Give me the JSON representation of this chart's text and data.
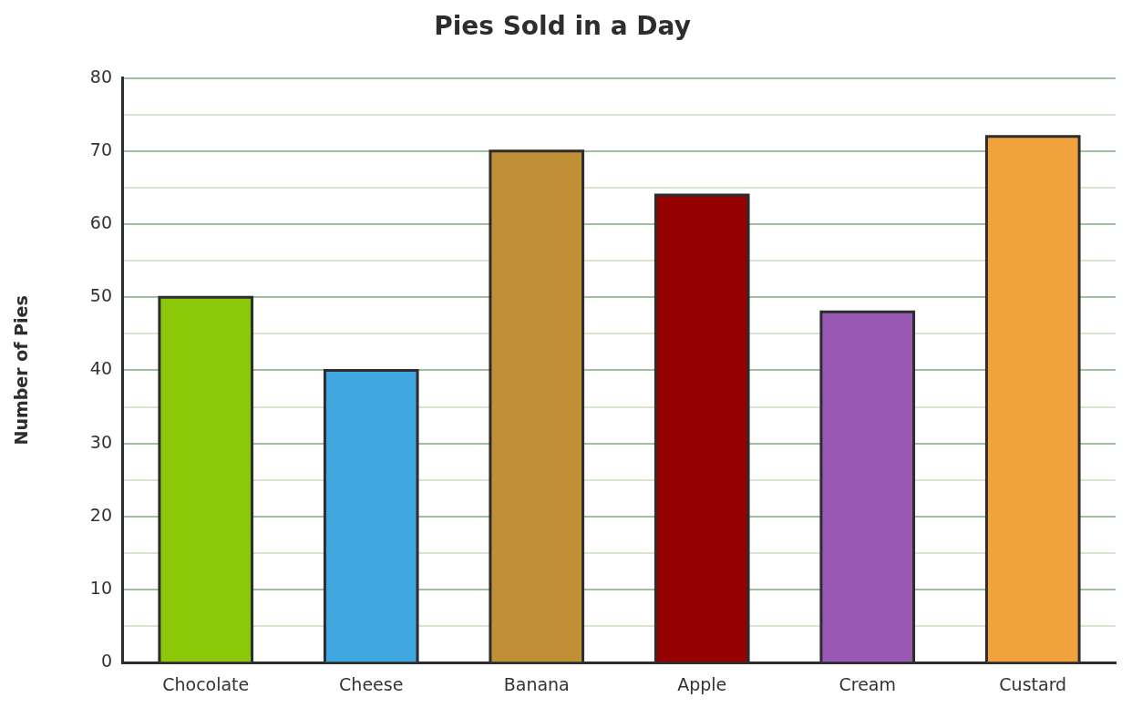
{
  "chart_data": {
    "type": "bar",
    "title": "Pies Sold in a Day",
    "ylabel": "Number of Pies",
    "categories": [
      "Chocolate",
      "Cheese",
      "Banana",
      "Apple",
      "Cream",
      "Custard"
    ],
    "values": [
      50,
      40,
      70,
      64,
      48,
      72
    ],
    "colors": [
      "#8cc80a",
      "#3fa6e0",
      "#c09036",
      "#950000",
      "#9b59b6",
      "#f2a23c"
    ],
    "ylim": [
      0,
      80
    ],
    "yticks": [
      0,
      {
        "value": 5,
        "label": null
      },
      10,
      {
        "value": 15,
        "label": null
      },
      20,
      {
        "value": 25,
        "label": null
      },
      30,
      {
        "value": 35,
        "label": null
      },
      40,
      {
        "value": 45,
        "label": null
      },
      50,
      {
        "value": 55,
        "label": null
      },
      60,
      {
        "value": 65,
        "label": null
      },
      70,
      {
        "value": 75,
        "label": null
      },
      80
    ],
    "grid": "y",
    "legend": false
  }
}
